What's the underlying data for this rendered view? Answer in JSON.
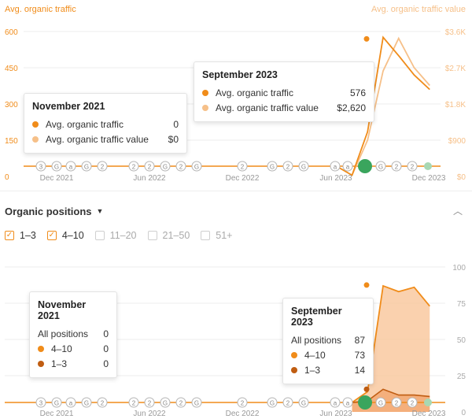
{
  "top_chart": {
    "left_axis_label": "Avg. organic traffic",
    "right_axis_label": "Avg. organic traffic value",
    "left_ticks": [
      "600",
      "450",
      "300",
      "150",
      "0"
    ],
    "right_ticks": [
      "$3.6K",
      "$2.7K",
      "$1.8K",
      "$900",
      "$0"
    ],
    "x_labels": [
      "Dec 2021",
      "Jun 2022",
      "Dec 2022",
      "Jun 2023",
      "Dec 2023"
    ],
    "markers": [
      "3",
      "G",
      "a",
      "G",
      "2",
      "",
      "2",
      "2",
      "G",
      "2",
      "G",
      "",
      "2",
      "",
      "G",
      "2",
      "G",
      "",
      "a",
      "a",
      "",
      "G",
      "2",
      "2",
      ""
    ],
    "colors": {
      "traffic": "#f08c1a",
      "value": "#f6c089",
      "highlight": "#3aa55d"
    }
  },
  "tooltip_nov_top": {
    "title": "November 2021",
    "rows": [
      {
        "label": "Avg. organic traffic",
        "value": "0"
      },
      {
        "label": "Avg. organic traffic value",
        "value": "$0"
      }
    ]
  },
  "tooltip_sep_top": {
    "title": "September 2023",
    "rows": [
      {
        "label": "Avg. organic traffic",
        "value": "576"
      },
      {
        "label": "Avg. organic traffic value",
        "value": "$2,620"
      }
    ]
  },
  "positions_section": {
    "title": "Organic positions",
    "filters": [
      {
        "label": "1–3",
        "checked": true
      },
      {
        "label": "4–10",
        "checked": true
      },
      {
        "label": "11–20",
        "checked": false
      },
      {
        "label": "21–50",
        "checked": false
      },
      {
        "label": "51+",
        "checked": false
      }
    ]
  },
  "bottom_chart": {
    "right_ticks": [
      "100",
      "75",
      "50",
      "25",
      "0"
    ],
    "x_labels": [
      "Dec 2021",
      "Jun 2022",
      "Dec 2022",
      "Jun 2023",
      "Dec 2023"
    ],
    "colors": {
      "top4_10": "#f08c1a",
      "top1_3": "#c05d12",
      "area": "#f9c9a0"
    }
  },
  "tooltip_nov_bottom": {
    "title": "November 2021",
    "rows": [
      {
        "label": "All positions",
        "value": "0"
      },
      {
        "label": "4–10",
        "value": "0"
      },
      {
        "label": "1–3",
        "value": "0"
      }
    ]
  },
  "tooltip_sep_bottom": {
    "title": "September 2023",
    "rows": [
      {
        "label": "All positions",
        "value": "87"
      },
      {
        "label": "4–10",
        "value": "73"
      },
      {
        "label": "1–3",
        "value": "14"
      }
    ]
  },
  "chart_data": [
    {
      "type": "line",
      "x": [
        "Nov 2021",
        "Dec 2021",
        "Jan 2022",
        "Feb 2022",
        "Mar 2022",
        "Apr 2022",
        "May 2022",
        "Jun 2022",
        "Jul 2022",
        "Aug 2022",
        "Sep 2022",
        "Oct 2022",
        "Nov 2022",
        "Dec 2022",
        "Jan 2023",
        "Feb 2023",
        "Mar 2023",
        "Apr 2023",
        "May 2023",
        "Jun 2023",
        "Jul 2023",
        "Aug 2023",
        "Sep 2023",
        "Oct 2023",
        "Nov 2023",
        "Dec 2023"
      ],
      "series": [
        {
          "name": "Avg. organic traffic",
          "values": [
            0,
            0,
            0,
            0,
            0,
            0,
            0,
            0,
            0,
            0,
            0,
            0,
            0,
            0,
            0,
            0,
            0,
            0,
            0,
            0,
            5,
            185,
            576,
            500,
            420,
            360
          ],
          "axis": "left"
        },
        {
          "name": "Avg. organic traffic value",
          "values": [
            0,
            0,
            0,
            0,
            0,
            0,
            0,
            0,
            0,
            0,
            0,
            0,
            0,
            0,
            0,
            0,
            0,
            0,
            0,
            0,
            30,
            900,
            2620,
            3430,
            2700,
            2260
          ],
          "axis": "right"
        }
      ],
      "ylim_left": [
        0,
        600
      ],
      "ylim_right": [
        0,
        3600
      ],
      "xlabel_ticks": [
        "Dec 2021",
        "Jun 2022",
        "Dec 2022",
        "Jun 2023",
        "Dec 2023"
      ]
    },
    {
      "type": "area",
      "x": [
        "Nov 2021",
        "Dec 2021",
        "Jan 2022",
        "Feb 2022",
        "Mar 2022",
        "Apr 2022",
        "May 2022",
        "Jun 2022",
        "Jul 2022",
        "Aug 2022",
        "Sep 2022",
        "Oct 2022",
        "Nov 2022",
        "Dec 2022",
        "Jan 2023",
        "Feb 2023",
        "Mar 2023",
        "Apr 2023",
        "May 2023",
        "Jun 2023",
        "Jul 2023",
        "Aug 2023",
        "Sep 2023",
        "Oct 2023",
        "Nov 2023",
        "Dec 2023"
      ],
      "series": [
        {
          "name": "4–10",
          "values": [
            0,
            0,
            0,
            0,
            0,
            0,
            0,
            0,
            0,
            0,
            0,
            0,
            0,
            0,
            0,
            0,
            0,
            0,
            0,
            0,
            0,
            8,
            73,
            73,
            76,
            64
          ]
        },
        {
          "name": "1–3",
          "values": [
            0,
            0,
            0,
            0,
            0,
            0,
            0,
            0,
            0,
            0,
            0,
            0,
            0,
            0,
            0,
            0,
            0,
            0,
            0,
            0,
            0,
            6,
            14,
            10,
            10,
            9
          ]
        }
      ],
      "ylim": [
        0,
        100
      ],
      "xlabel_ticks": [
        "Dec 2021",
        "Jun 2022",
        "Dec 2022",
        "Jun 2023",
        "Dec 2023"
      ]
    }
  ]
}
